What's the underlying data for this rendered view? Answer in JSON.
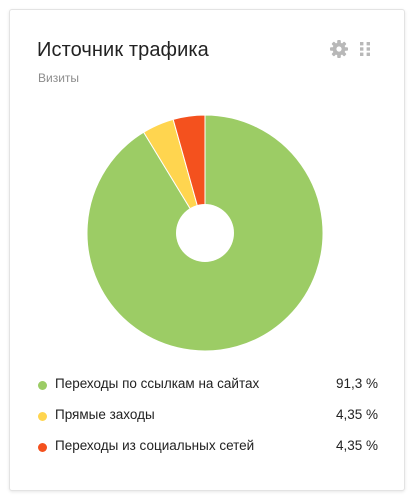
{
  "widget": {
    "title": "Источник трафика",
    "subtitle": "Визиты",
    "settings_icon": "gear-icon",
    "drag_icon": "drag-handle-icon"
  },
  "colors": {
    "links": "#9ccc65",
    "direct": "#ffd54f",
    "social": "#f4511e",
    "hole": "#ffffff",
    "icon": "#b8b8b8"
  },
  "chart_data": {
    "type": "pie",
    "donut": true,
    "title": "",
    "legend_position": "bottom",
    "slices": [
      {
        "label": "Переходы по ссылкам на сайтах",
        "value": 91.3,
        "value_label": "91,3 %",
        "color": "#9ccc65"
      },
      {
        "label": "Прямые заходы",
        "value": 4.35,
        "value_label": "4,35 %",
        "color": "#ffd54f"
      },
      {
        "label": "Переходы из социальных сетей",
        "value": 4.35,
        "value_label": "4,35 %",
        "color": "#f4511e"
      }
    ]
  }
}
